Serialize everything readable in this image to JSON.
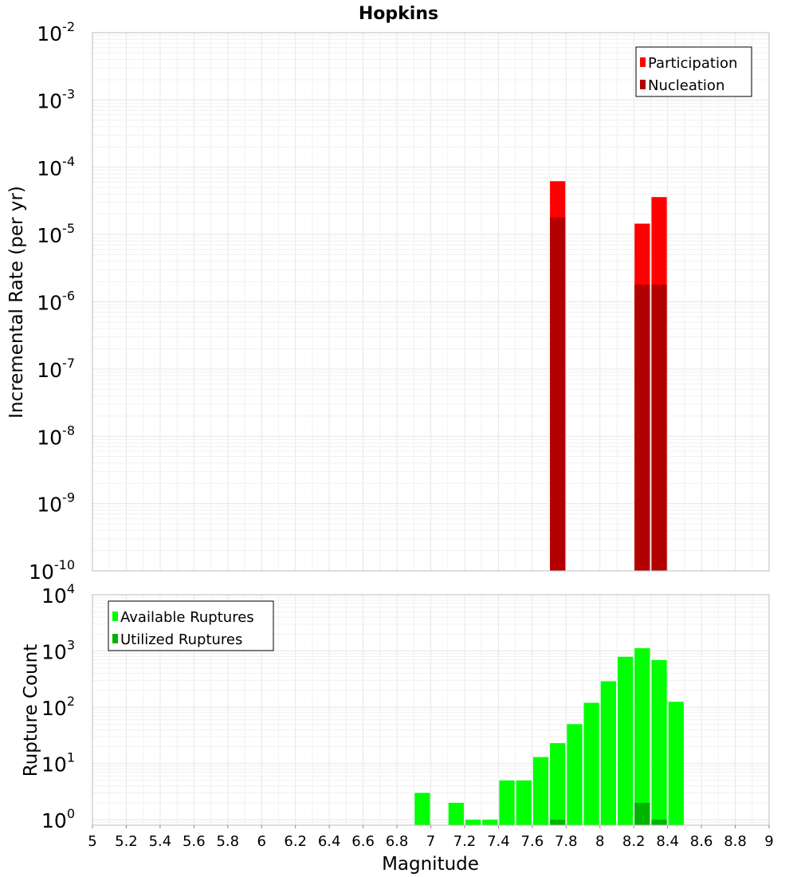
{
  "chart_data": [
    {
      "type": "bar",
      "title": "Hopkins",
      "ylabel": "Incremental Rate (per yr)",
      "xlabel": "",
      "yscale": "log",
      "ylim": [
        1e-10,
        0.01
      ],
      "xlim": [
        5,
        9
      ],
      "ytick_exponents": [
        -10,
        -9,
        -8,
        -7,
        -6,
        -5,
        -4,
        -3,
        -2
      ],
      "bar_width": 0.1,
      "legend": {
        "position": "top-right",
        "entries": [
          "Participation",
          "Nucleation"
        ]
      },
      "series": [
        {
          "name": "Participation",
          "color": "#ff0000",
          "points": [
            {
              "x": 7.75,
              "y": 6.2e-05
            },
            {
              "x": 8.25,
              "y": 1.45e-05
            },
            {
              "x": 8.35,
              "y": 3.6e-05
            }
          ]
        },
        {
          "name": "Nucleation",
          "color": "#b30000",
          "points": [
            {
              "x": 7.75,
              "y": 1.8e-05
            },
            {
              "x": 8.25,
              "y": 1.8e-06
            },
            {
              "x": 8.35,
              "y": 1.8e-06
            }
          ]
        }
      ]
    },
    {
      "type": "bar",
      "title": "",
      "ylabel": "Rupture Count",
      "xlabel": "Magnitude",
      "yscale": "log",
      "ylim": [
        0.8,
        10000
      ],
      "xlim": [
        5,
        9
      ],
      "ytick_exponents": [
        0,
        1,
        2,
        3,
        4
      ],
      "xticks": [
        "5",
        "5.2",
        "5.4",
        "5.6",
        "5.8",
        "6",
        "6.2",
        "6.4",
        "6.6",
        "6.8",
        "7",
        "7.2",
        "7.4",
        "7.6",
        "7.8",
        "8",
        "8.2",
        "8.4",
        "8.6",
        "8.8",
        "9"
      ],
      "bar_width": 0.1,
      "legend": {
        "position": "top-left",
        "entries": [
          "Available Ruptures",
          "Utilized Ruptures"
        ]
      },
      "series": [
        {
          "name": "Available Ruptures",
          "color": "#00ff00",
          "points": [
            {
              "x": 6.95,
              "y": 3
            },
            {
              "x": 7.15,
              "y": 2
            },
            {
              "x": 7.25,
              "y": 1
            },
            {
              "x": 7.35,
              "y": 1
            },
            {
              "x": 7.45,
              "y": 5
            },
            {
              "x": 7.55,
              "y": 5
            },
            {
              "x": 7.65,
              "y": 13
            },
            {
              "x": 7.75,
              "y": 23
            },
            {
              "x": 7.85,
              "y": 50
            },
            {
              "x": 7.95,
              "y": 120
            },
            {
              "x": 8.05,
              "y": 290
            },
            {
              "x": 8.15,
              "y": 790
            },
            {
              "x": 8.25,
              "y": 1120
            },
            {
              "x": 8.35,
              "y": 690
            },
            {
              "x": 8.45,
              "y": 125
            }
          ]
        },
        {
          "name": "Utilized Ruptures",
          "color": "#00b300",
          "points": [
            {
              "x": 7.75,
              "y": 1
            },
            {
              "x": 8.25,
              "y": 2
            },
            {
              "x": 8.35,
              "y": 1
            }
          ]
        }
      ]
    }
  ]
}
